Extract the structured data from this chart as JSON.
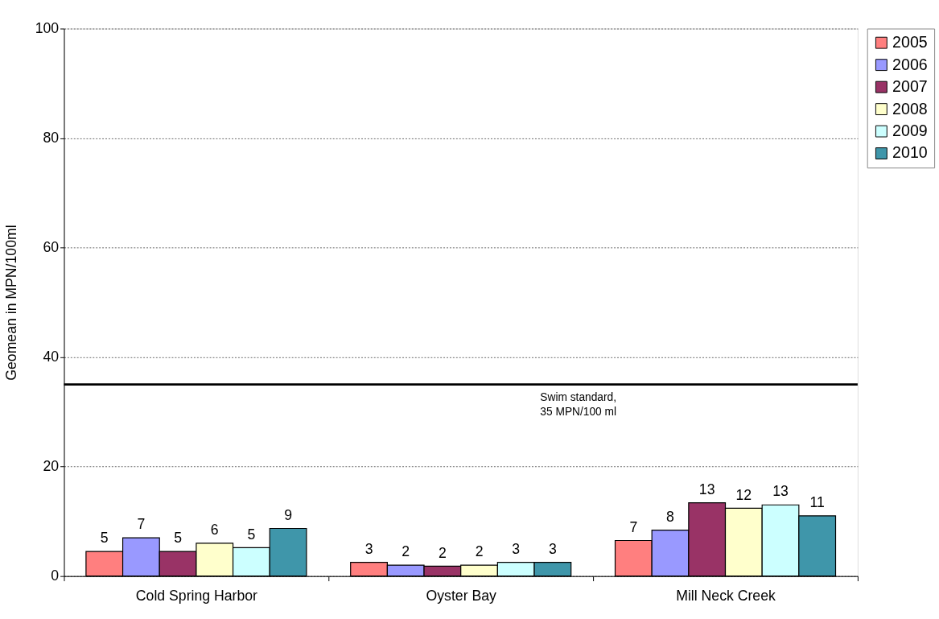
{
  "chart_data": {
    "type": "bar",
    "ylabel": "Geomean  in MPN/100ml",
    "categories": [
      "Cold Spring Harbor",
      "Oyster Bay",
      "Mill Neck Creek"
    ],
    "series": [
      {
        "name": "2005",
        "color": "#ff7f7f",
        "values": [
          4.5,
          2.5,
          6.5
        ],
        "value_labels": [
          "5",
          "3",
          "7"
        ]
      },
      {
        "name": "2006",
        "color": "#9999ff",
        "values": [
          7.0,
          2.0,
          8.4
        ],
        "value_labels": [
          "7",
          "2",
          "8"
        ]
      },
      {
        "name": "2007",
        "color": "#993366",
        "values": [
          4.5,
          1.8,
          13.4
        ],
        "value_labels": [
          "5",
          "2",
          "13"
        ]
      },
      {
        "name": "2008",
        "color": "#ffffcc",
        "values": [
          6.0,
          2.0,
          12.4
        ],
        "value_labels": [
          "6",
          "2",
          "12"
        ]
      },
      {
        "name": "2009",
        "color": "#ccffff",
        "values": [
          5.2,
          2.5,
          13.0
        ],
        "value_labels": [
          "5",
          "3",
          "13"
        ]
      },
      {
        "name": "2010",
        "color": "#3f96aa",
        "values": [
          8.7,
          2.5,
          11.0
        ],
        "value_labels": [
          "9",
          "3",
          "11"
        ]
      }
    ],
    "ylim": [
      0,
      100
    ],
    "yticks": [
      0,
      20,
      40,
      60,
      80,
      100
    ],
    "grid": "y",
    "legend": "right",
    "ref_lines": [
      {
        "axis": "y",
        "value": 35,
        "label": "Swim standard, 35 MPN/100 ml",
        "color": "#000000",
        "line_style": "solid"
      }
    ]
  }
}
